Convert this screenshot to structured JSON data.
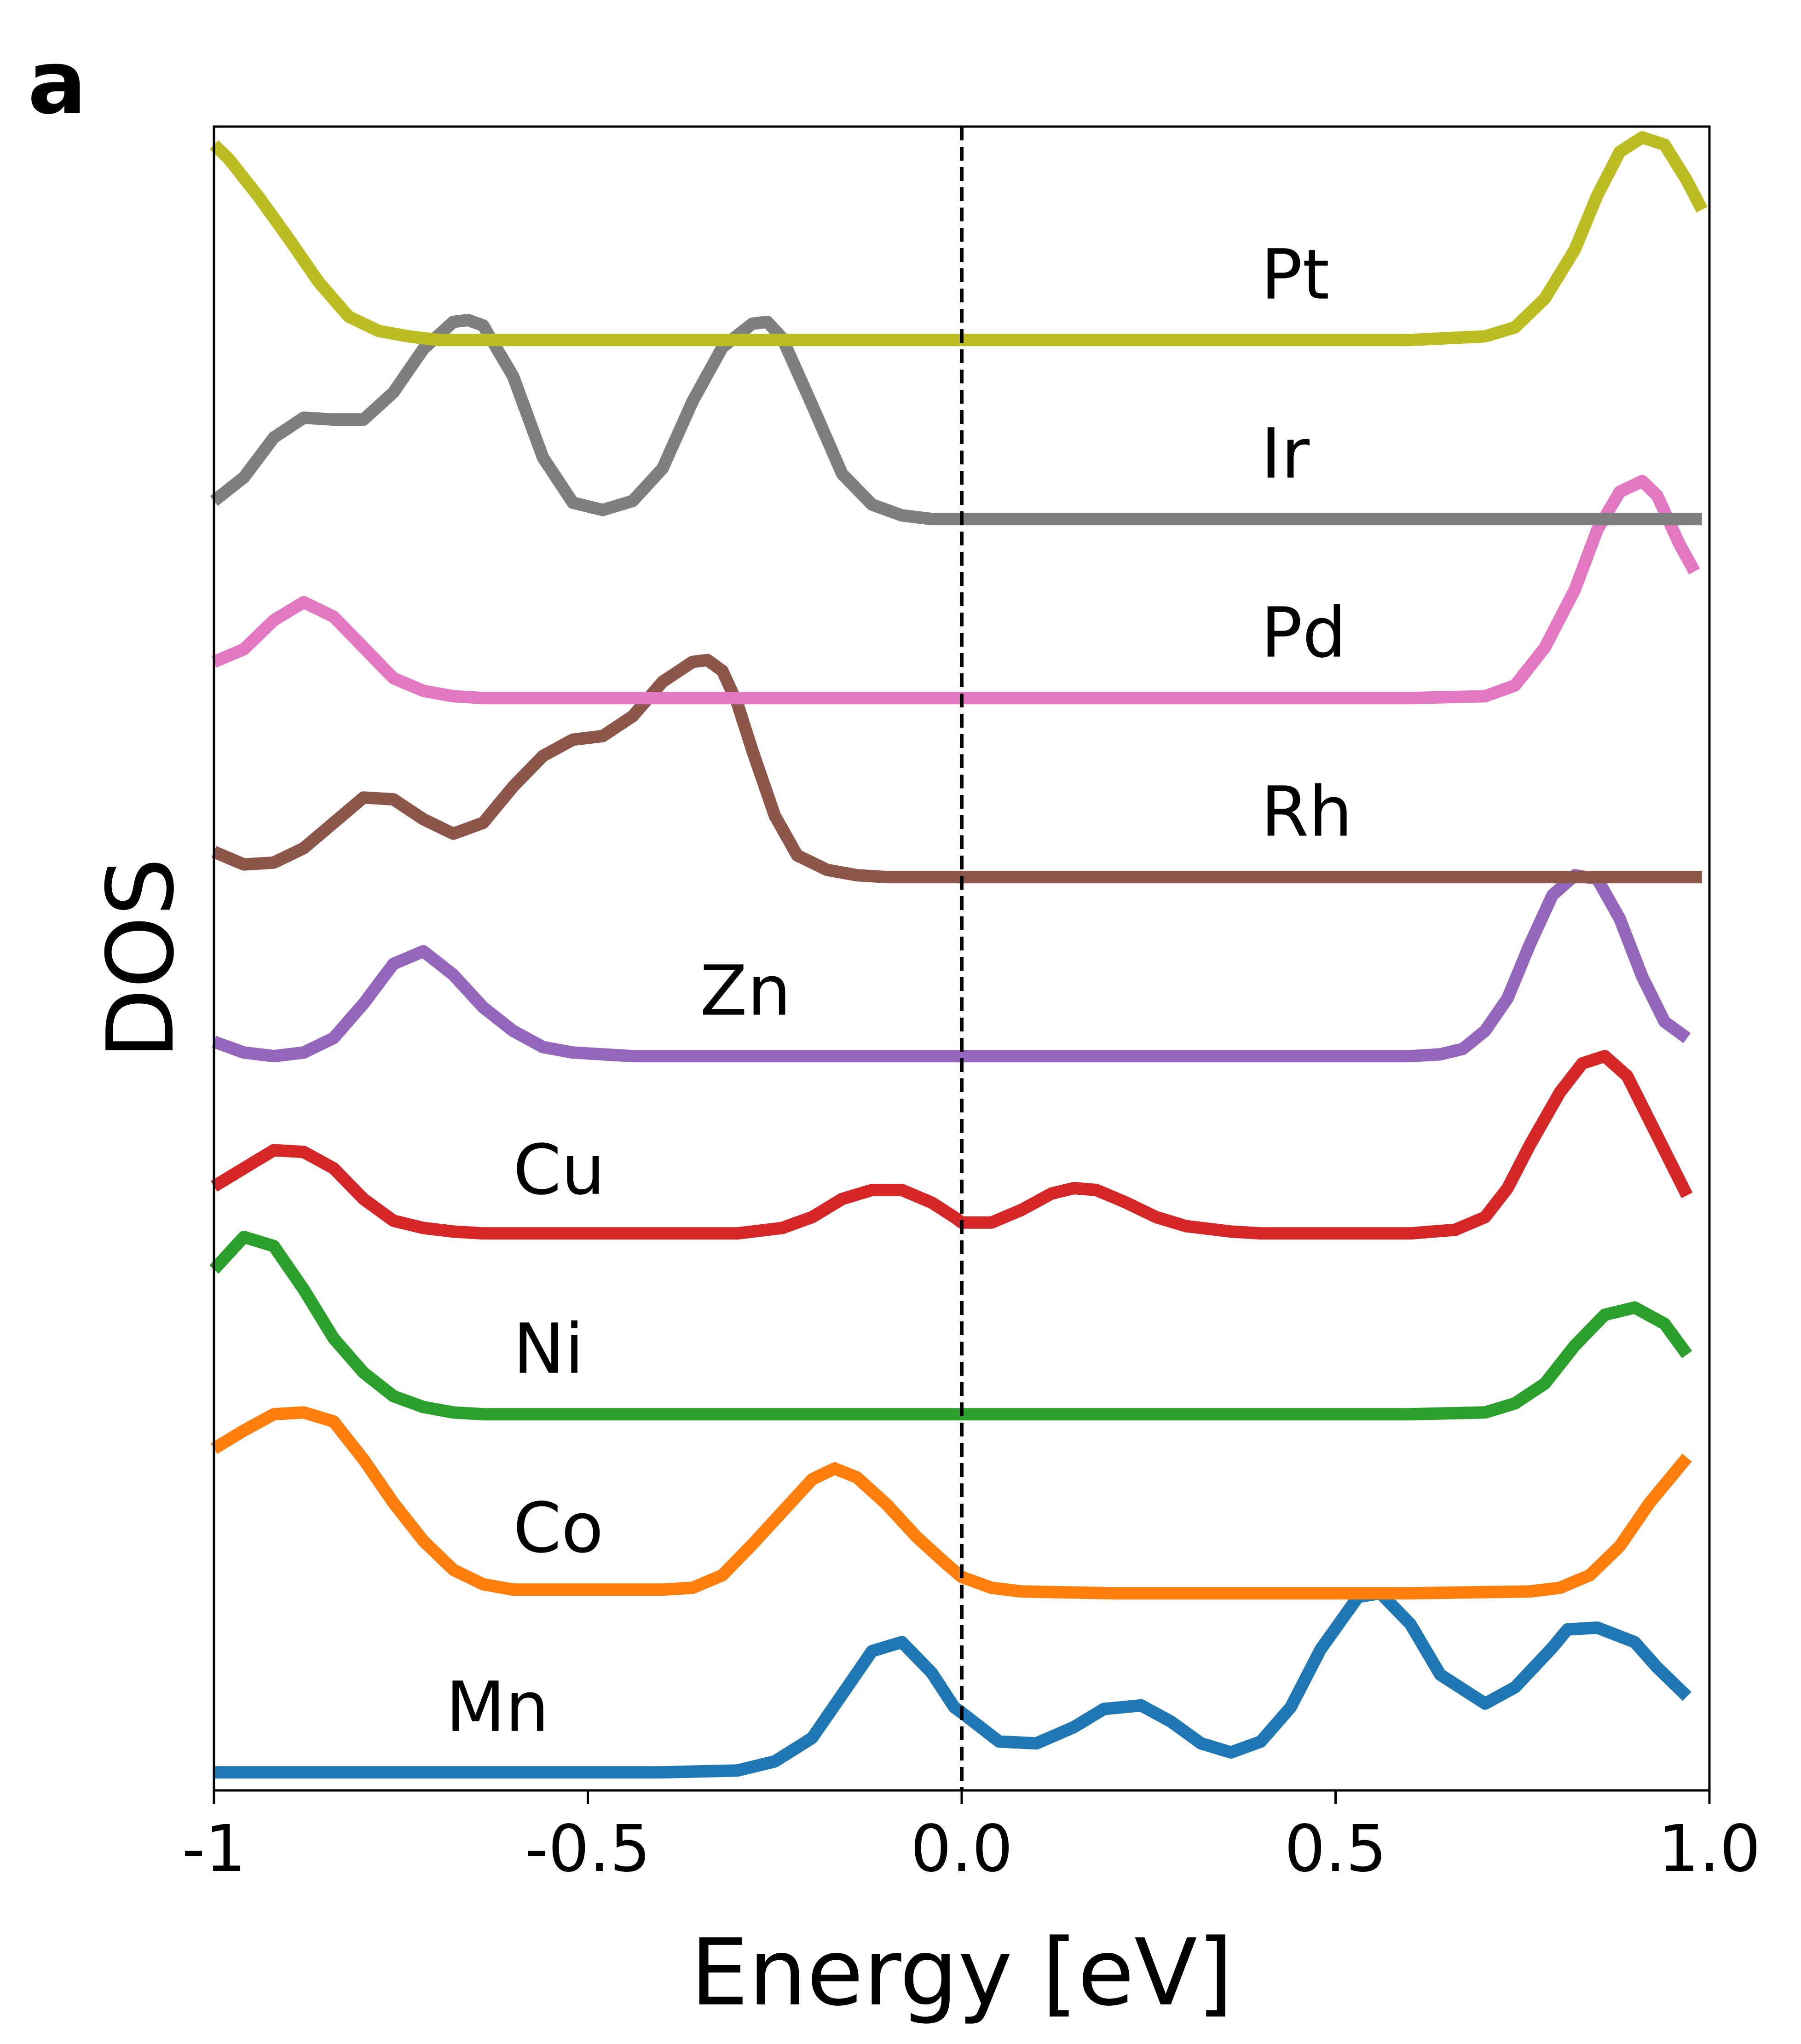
{
  "panel_label": "a",
  "chart_data": {
    "type": "line",
    "title": "",
    "xlabel": "Energy [eV]",
    "ylabel": "DOS",
    "xlim": [
      -1.0,
      1.0
    ],
    "xticks": [
      {
        "value": -1.0,
        "label": "-1"
      },
      {
        "value": -0.5,
        "label": "-0.5"
      },
      {
        "value": 0.0,
        "label": "0.0"
      },
      {
        "value": 0.5,
        "label": "0.5"
      },
      {
        "value": 1.0,
        "label": "1.0"
      }
    ],
    "yticks": [],
    "grid": false,
    "legend": "none",
    "fermi_line": {
      "x": 0.0,
      "style": "dashed",
      "color": "#000000"
    },
    "ylim": [
      0,
      9.2
    ],
    "series": [
      {
        "name": "Mn",
        "color": "#1f77b4",
        "offset": 0,
        "label_x": -0.69,
        "x": [
          -1.0,
          -0.9,
          -0.8,
          -0.7,
          -0.6,
          -0.5,
          -0.4,
          -0.3,
          -0.25,
          -0.2,
          -0.15,
          -0.12,
          -0.08,
          -0.04,
          -0.01,
          0.0,
          0.05,
          0.1,
          0.15,
          0.19,
          0.24,
          0.28,
          0.32,
          0.36,
          0.4,
          0.44,
          0.48,
          0.53,
          0.56,
          0.6,
          0.64,
          0.7,
          0.74,
          0.79,
          0.81,
          0.85,
          0.9,
          0.93,
          0.97
        ],
        "y": [
          0.0,
          0.0,
          0.0,
          0.0,
          0.0,
          0.0,
          0.0,
          0.01,
          0.06,
          0.19,
          0.49,
          0.67,
          0.72,
          0.55,
          0.36,
          0.33,
          0.17,
          0.16,
          0.25,
          0.35,
          0.37,
          0.28,
          0.16,
          0.11,
          0.17,
          0.36,
          0.68,
          0.97,
          0.99,
          0.82,
          0.54,
          0.38,
          0.47,
          0.69,
          0.79,
          0.8,
          0.72,
          0.58,
          0.42
        ]
      },
      {
        "name": "Co",
        "color": "#ff7f0e",
        "offset": 1,
        "label_x": -0.6,
        "x": [
          -1.0,
          -0.96,
          -0.92,
          -0.88,
          -0.84,
          -0.8,
          -0.76,
          -0.72,
          -0.68,
          -0.64,
          -0.6,
          -0.5,
          -0.4,
          -0.36,
          -0.32,
          -0.28,
          -0.24,
          -0.2,
          -0.17,
          -0.14,
          -0.1,
          -0.06,
          -0.02,
          0.0,
          0.04,
          0.08,
          0.2,
          0.4,
          0.6,
          0.76,
          0.8,
          0.84,
          0.88,
          0.92,
          0.97
        ],
        "y": [
          0.8,
          0.9,
          0.99,
          1.0,
          0.95,
          0.74,
          0.5,
          0.29,
          0.13,
          0.05,
          0.02,
          0.02,
          0.02,
          0.03,
          0.1,
          0.27,
          0.45,
          0.63,
          0.69,
          0.64,
          0.49,
          0.31,
          0.16,
          0.09,
          0.03,
          0.01,
          0.0,
          0.0,
          0.0,
          0.01,
          0.03,
          0.1,
          0.26,
          0.5,
          0.75
        ]
      },
      {
        "name": "Ni",
        "color": "#2ca02c",
        "offset": 2,
        "label_x": -0.6,
        "x": [
          -1.0,
          -0.96,
          -0.92,
          -0.88,
          -0.84,
          -0.8,
          -0.76,
          -0.72,
          -0.68,
          -0.64,
          -0.6,
          -0.4,
          -0.2,
          0.0,
          0.2,
          0.4,
          0.6,
          0.7,
          0.74,
          0.78,
          0.82,
          0.86,
          0.9,
          0.94,
          0.97
        ],
        "y": [
          0.8,
          0.98,
          0.93,
          0.69,
          0.42,
          0.23,
          0.1,
          0.04,
          0.01,
          0.0,
          0.0,
          0.0,
          0.0,
          0.0,
          0.0,
          0.0,
          0.0,
          0.01,
          0.06,
          0.17,
          0.38,
          0.55,
          0.59,
          0.5,
          0.33
        ]
      },
      {
        "name": "Cu",
        "color": "#d62728",
        "offset": 3,
        "label_x": -0.6,
        "x": [
          -1.0,
          -0.96,
          -0.92,
          -0.88,
          -0.84,
          -0.8,
          -0.76,
          -0.72,
          -0.68,
          -0.64,
          -0.6,
          -0.5,
          -0.4,
          -0.3,
          -0.24,
          -0.2,
          -0.16,
          -0.12,
          -0.08,
          -0.04,
          -0.01,
          0.0,
          0.04,
          0.08,
          0.12,
          0.15,
          0.18,
          0.22,
          0.26,
          0.3,
          0.36,
          0.4,
          0.5,
          0.6,
          0.66,
          0.7,
          0.73,
          0.76,
          0.8,
          0.83,
          0.86,
          0.89,
          0.93,
          0.97
        ],
        "y": [
          0.27,
          0.37,
          0.47,
          0.46,
          0.37,
          0.2,
          0.08,
          0.04,
          0.02,
          0.01,
          0.01,
          0.01,
          0.01,
          0.01,
          0.04,
          0.1,
          0.2,
          0.25,
          0.25,
          0.18,
          0.1,
          0.07,
          0.07,
          0.14,
          0.23,
          0.26,
          0.25,
          0.18,
          0.1,
          0.05,
          0.02,
          0.01,
          0.01,
          0.01,
          0.03,
          0.1,
          0.26,
          0.5,
          0.79,
          0.95,
          0.99,
          0.88,
          0.55,
          0.22
        ]
      },
      {
        "name": "Zn",
        "color": "#9467bd",
        "offset": 4,
        "label_x": -0.35,
        "x": [
          -1.0,
          -0.96,
          -0.92,
          -0.88,
          -0.84,
          -0.8,
          -0.76,
          -0.72,
          -0.68,
          -0.64,
          -0.6,
          -0.56,
          -0.52,
          -0.48,
          -0.44,
          -0.4,
          -0.3,
          -0.2,
          0.0,
          0.2,
          0.4,
          0.6,
          0.64,
          0.67,
          0.7,
          0.73,
          0.76,
          0.79,
          0.82,
          0.85,
          0.88,
          0.91,
          0.94,
          0.97
        ],
        "y": [
          0.08,
          0.02,
          0.0,
          0.02,
          0.1,
          0.29,
          0.51,
          0.58,
          0.45,
          0.27,
          0.14,
          0.05,
          0.02,
          0.01,
          0.0,
          0.0,
          0.0,
          0.0,
          0.0,
          0.0,
          0.0,
          0.0,
          0.01,
          0.04,
          0.14,
          0.32,
          0.62,
          0.89,
          1.0,
          0.98,
          0.76,
          0.44,
          0.19,
          0.1
        ]
      },
      {
        "name": "Rh",
        "color": "#8c564b",
        "offset": 5,
        "label_x": 0.4,
        "x": [
          -1.0,
          -0.96,
          -0.92,
          -0.88,
          -0.84,
          -0.8,
          -0.76,
          -0.72,
          -0.68,
          -0.64,
          -0.6,
          -0.56,
          -0.52,
          -0.48,
          -0.44,
          -0.4,
          -0.36,
          -0.34,
          -0.32,
          -0.3,
          -0.28,
          -0.25,
          -0.22,
          -0.18,
          -0.14,
          -0.1,
          -0.06,
          -0.02,
          0.0,
          0.2,
          0.4,
          0.6,
          0.8,
          0.99
        ],
        "y": [
          0.14,
          0.07,
          0.08,
          0.16,
          0.3,
          0.44,
          0.43,
          0.32,
          0.24,
          0.3,
          0.5,
          0.67,
          0.76,
          0.78,
          0.89,
          1.08,
          1.19,
          1.2,
          1.14,
          0.96,
          0.7,
          0.34,
          0.12,
          0.04,
          0.01,
          0.0,
          0.0,
          0.0,
          0.0,
          0.0,
          0.0,
          0.0,
          0.0,
          0.0
        ]
      },
      {
        "name": "Pd",
        "color": "#e377c2",
        "offset": 6,
        "label_x": 0.4,
        "x": [
          -1.0,
          -0.96,
          -0.92,
          -0.88,
          -0.84,
          -0.8,
          -0.76,
          -0.72,
          -0.68,
          -0.64,
          -0.6,
          -0.4,
          -0.2,
          0.0,
          0.2,
          0.4,
          0.6,
          0.7,
          0.74,
          0.78,
          0.82,
          0.85,
          0.88,
          0.91,
          0.93,
          0.96,
          0.98
        ],
        "y": [
          0.2,
          0.27,
          0.43,
          0.53,
          0.45,
          0.28,
          0.11,
          0.04,
          0.01,
          0.0,
          0.0,
          0.0,
          0.0,
          0.0,
          0.0,
          0.0,
          0.0,
          0.01,
          0.07,
          0.28,
          0.6,
          0.93,
          1.14,
          1.2,
          1.12,
          0.85,
          0.7
        ]
      },
      {
        "name": "Ir",
        "color": "#7f7f7f",
        "offset": 7,
        "label_x": 0.4,
        "x": [
          -1.0,
          -0.96,
          -0.92,
          -0.88,
          -0.84,
          -0.8,
          -0.76,
          -0.72,
          -0.68,
          -0.66,
          -0.64,
          -0.6,
          -0.56,
          -0.52,
          -0.48,
          -0.44,
          -0.4,
          -0.36,
          -0.32,
          -0.28,
          -0.26,
          -0.24,
          -0.2,
          -0.16,
          -0.12,
          -0.08,
          -0.04,
          0.0,
          0.2,
          0.4,
          0.6,
          0.8,
          0.99
        ],
        "y": [
          0.1,
          0.23,
          0.45,
          0.56,
          0.55,
          0.55,
          0.7,
          0.94,
          1.09,
          1.1,
          1.07,
          0.79,
          0.34,
          0.09,
          0.05,
          0.1,
          0.28,
          0.65,
          0.95,
          1.08,
          1.09,
          1.0,
          0.63,
          0.25,
          0.08,
          0.02,
          0.0,
          0.0,
          0.0,
          0.0,
          0.0,
          0.0,
          0.0
        ]
      },
      {
        "name": "Pt",
        "color": "#bcbd22",
        "offset": 8,
        "label_x": 0.4,
        "x": [
          -1.0,
          -0.98,
          -0.94,
          -0.9,
          -0.86,
          -0.82,
          -0.78,
          -0.74,
          -0.7,
          -0.66,
          -0.6,
          -0.4,
          -0.2,
          0.0,
          0.2,
          0.4,
          0.6,
          0.7,
          0.74,
          0.78,
          0.82,
          0.85,
          0.88,
          0.91,
          0.94,
          0.97,
          0.99
        ],
        "y": [
          1.08,
          1.0,
          0.79,
          0.56,
          0.32,
          0.13,
          0.05,
          0.02,
          0.0,
          0.0,
          0.0,
          0.0,
          0.0,
          0.0,
          0.0,
          0.0,
          0.0,
          0.02,
          0.07,
          0.23,
          0.5,
          0.8,
          1.04,
          1.12,
          1.08,
          0.88,
          0.72
        ]
      }
    ]
  }
}
